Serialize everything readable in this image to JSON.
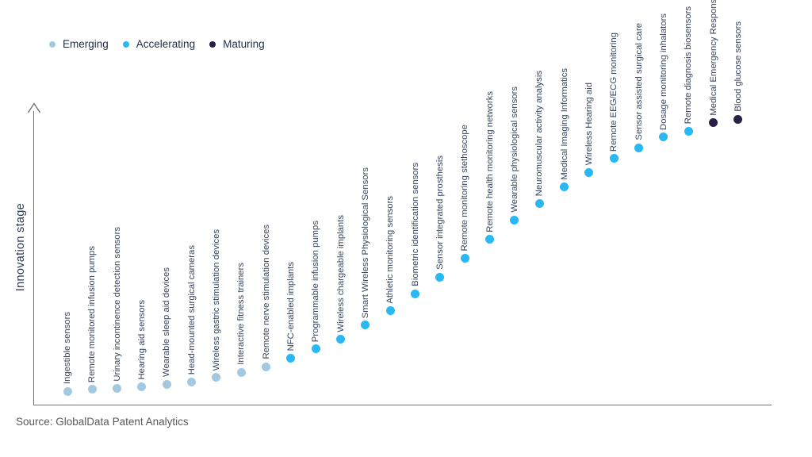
{
  "legend": {
    "items": [
      {
        "label": "Emerging",
        "color": "#a3c9e1"
      },
      {
        "label": "Accelerating",
        "color": "#29b8f2"
      },
      {
        "label": "Maturing",
        "color": "#292145"
      }
    ]
  },
  "axis": {
    "y_label": "Innovation stage"
  },
  "source": "Source: GlobalData Patent Analytics",
  "chart_data": {
    "type": "scatter",
    "title": "",
    "xlabel": "",
    "ylabel": "Innovation stage",
    "ylim": [
      0,
      100
    ],
    "grid": false,
    "legend_position": "top-left",
    "axis_color": "#717171",
    "note": "S-curve of medical sensor technologies ordered left-to-right by innovation stage; y values estimated 0-100 from plot",
    "points": [
      {
        "label": "Ingestible sensors",
        "stage": "Emerging",
        "value": 4.5
      },
      {
        "label": "Remote monitored infusion pumps",
        "stage": "Emerging",
        "value": 5.1
      },
      {
        "label": "Urinary incontinence detection sensors",
        "stage": "Emerging",
        "value": 5.4
      },
      {
        "label": "Hearing aid sensors",
        "stage": "Emerging",
        "value": 5.9
      },
      {
        "label": "Wearable sleep aid devices",
        "stage": "Emerging",
        "value": 6.9
      },
      {
        "label": "Head-mounted surgical cameras",
        "stage": "Emerging",
        "value": 7.7
      },
      {
        "label": "Wireless gastric stimulation devices",
        "stage": "Emerging",
        "value": 9.1
      },
      {
        "label": "Interactive fitness trainers",
        "stage": "Emerging",
        "value": 10.9
      },
      {
        "label": "Remote nerve stimulation devices",
        "stage": "Emerging",
        "value": 12.8
      },
      {
        "label": "NFC-enabled implants",
        "stage": "Accelerating",
        "value": 15.5
      },
      {
        "label": "Programmable infusion pumps",
        "stage": "Accelerating",
        "value": 18.7
      },
      {
        "label": "Wireless chargeable implants",
        "stage": "Accelerating",
        "value": 22.1
      },
      {
        "label": "Smart Wireless Physiological Sensors",
        "stage": "Accelerating",
        "value": 26.7
      },
      {
        "label": "Athletic monitoring sensors",
        "stage": "Accelerating",
        "value": 31.7
      },
      {
        "label": "Biometric identification sensors",
        "stage": "Accelerating",
        "value": 37.3
      },
      {
        "label": "Sensor integrated prosthesis",
        "stage": "Accelerating",
        "value": 42.9
      },
      {
        "label": "Remote monitoring stethoscope",
        "stage": "Accelerating",
        "value": 49.3
      },
      {
        "label": "Remote health monitoring networks",
        "stage": "Accelerating",
        "value": 55.5
      },
      {
        "label": "Wearable physiological sensors",
        "stage": "Accelerating",
        "value": 62.1
      },
      {
        "label": "Neuromuscular activity analysis",
        "stage": "Accelerating",
        "value": 67.7
      },
      {
        "label": "Medical Imaging Informatics",
        "stage": "Accelerating",
        "value": 73.1
      },
      {
        "label": "Wireless Hearing aid",
        "stage": "Accelerating",
        "value": 78.1
      },
      {
        "label": "Remote EEG/ECG monitoring",
        "stage": "Accelerating",
        "value": 82.7
      },
      {
        "label": "Sensor assisted surgical care",
        "stage": "Accelerating",
        "value": 86.4
      },
      {
        "label": "Dosage monitoring inhalators",
        "stage": "Accelerating",
        "value": 89.9
      },
      {
        "label": "Remote diagnosis biosensors",
        "stage": "Accelerating",
        "value": 92.0
      },
      {
        "label": "Medical Emergency Response Systems",
        "stage": "Maturing",
        "value": 94.7
      },
      {
        "label": "Blood glucose sensors",
        "stage": "Maturing",
        "value": 96.0
      }
    ]
  }
}
